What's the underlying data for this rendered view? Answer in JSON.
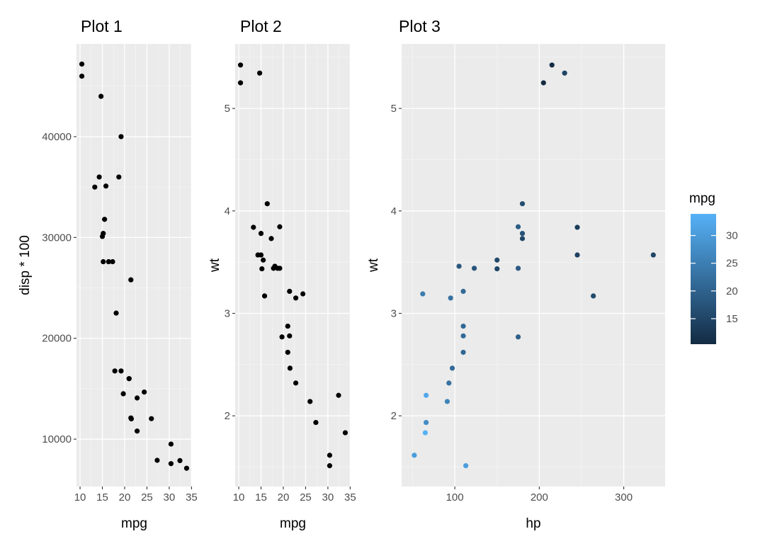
{
  "chart_data": [
    {
      "type": "scatter",
      "title": "Plot 1",
      "xlabel": "mpg",
      "ylabel": "disp * 100",
      "xlim": [
        9.2,
        35.1
      ],
      "ylim": [
        5300,
        49200
      ],
      "xticks": [
        10,
        15,
        20,
        25,
        30,
        35
      ],
      "yticks": [
        10000,
        20000,
        30000,
        40000
      ],
      "grid": true,
      "points": [
        {
          "x": 10.4,
          "y": 47200
        },
        {
          "x": 10.4,
          "y": 46000
        },
        {
          "x": 14.7,
          "y": 44000
        },
        {
          "x": 19.2,
          "y": 40000
        },
        {
          "x": 14.3,
          "y": 36000
        },
        {
          "x": 18.7,
          "y": 36000
        },
        {
          "x": 13.3,
          "y": 35000
        },
        {
          "x": 15.8,
          "y": 35100
        },
        {
          "x": 15.5,
          "y": 31800
        },
        {
          "x": 15.2,
          "y": 30400
        },
        {
          "x": 15.0,
          "y": 30100
        },
        {
          "x": 15.2,
          "y": 27600
        },
        {
          "x": 16.4,
          "y": 27600
        },
        {
          "x": 17.3,
          "y": 27600
        },
        {
          "x": 21.4,
          "y": 25800
        },
        {
          "x": 18.1,
          "y": 22500
        },
        {
          "x": 17.8,
          "y": 16760
        },
        {
          "x": 19.2,
          "y": 16760
        },
        {
          "x": 21.0,
          "y": 16000
        },
        {
          "x": 21.0,
          "y": 16000
        },
        {
          "x": 24.4,
          "y": 14670
        },
        {
          "x": 19.7,
          "y": 14500
        },
        {
          "x": 22.8,
          "y": 14080
        },
        {
          "x": 26.0,
          "y": 12030
        },
        {
          "x": 21.4,
          "y": 12100
        },
        {
          "x": 21.5,
          "y": 12010
        },
        {
          "x": 22.8,
          "y": 10800
        },
        {
          "x": 30.4,
          "y": 9510
        },
        {
          "x": 27.3,
          "y": 7900
        },
        {
          "x": 32.4,
          "y": 7870
        },
        {
          "x": 30.4,
          "y": 7570
        },
        {
          "x": 33.9,
          "y": 7110
        }
      ]
    },
    {
      "type": "scatter",
      "title": "Plot 2",
      "xlabel": "mpg",
      "ylabel": "wt",
      "xlim": [
        9.2,
        35.1
      ],
      "ylim": [
        1.31,
        5.63
      ],
      "xticks": [
        10,
        15,
        20,
        25,
        30,
        35
      ],
      "yticks": [
        2,
        3,
        4,
        5
      ],
      "grid": true,
      "points": [
        {
          "x": 10.4,
          "y": 5.424
        },
        {
          "x": 10.4,
          "y": 5.25
        },
        {
          "x": 14.7,
          "y": 5.345
        },
        {
          "x": 16.4,
          "y": 4.07
        },
        {
          "x": 13.3,
          "y": 3.84
        },
        {
          "x": 19.2,
          "y": 3.845
        },
        {
          "x": 15.0,
          "y": 3.78
        },
        {
          "x": 17.3,
          "y": 3.73
        },
        {
          "x": 14.3,
          "y": 3.57
        },
        {
          "x": 15.0,
          "y": 3.57
        },
        {
          "x": 15.5,
          "y": 3.52
        },
        {
          "x": 15.2,
          "y": 3.435
        },
        {
          "x": 18.1,
          "y": 3.46
        },
        {
          "x": 17.8,
          "y": 3.44
        },
        {
          "x": 18.7,
          "y": 3.44
        },
        {
          "x": 19.2,
          "y": 3.44
        },
        {
          "x": 15.8,
          "y": 3.17
        },
        {
          "x": 21.4,
          "y": 3.215
        },
        {
          "x": 24.4,
          "y": 3.19
        },
        {
          "x": 22.8,
          "y": 3.15
        },
        {
          "x": 21.0,
          "y": 2.875
        },
        {
          "x": 19.7,
          "y": 2.77
        },
        {
          "x": 21.4,
          "y": 2.78
        },
        {
          "x": 21.0,
          "y": 2.62
        },
        {
          "x": 21.5,
          "y": 2.465
        },
        {
          "x": 22.8,
          "y": 2.32
        },
        {
          "x": 26.0,
          "y": 2.14
        },
        {
          "x": 32.4,
          "y": 2.2
        },
        {
          "x": 27.3,
          "y": 1.935
        },
        {
          "x": 33.9,
          "y": 1.835
        },
        {
          "x": 30.4,
          "y": 1.615
        },
        {
          "x": 30.4,
          "y": 1.513
        }
      ]
    },
    {
      "type": "scatter",
      "title": "Plot 3",
      "xlabel": "hp",
      "ylabel": "wt",
      "xlim": [
        37,
        349
      ],
      "ylim": [
        1.31,
        5.63
      ],
      "xticks": [
        100,
        200,
        300
      ],
      "yticks": [
        2,
        3,
        4,
        5
      ],
      "grid": true,
      "color_by": "mpg",
      "legend": {
        "title": "mpg",
        "position": "right",
        "ticks": [
          15,
          20,
          25,
          30
        ],
        "range": [
          10.4,
          33.9
        ],
        "low_color": "#132B43",
        "high_color": "#56B1F7"
      },
      "points": [
        {
          "x": 215,
          "y": 5.424,
          "c": 10.4
        },
        {
          "x": 205,
          "y": 5.25,
          "c": 10.4
        },
        {
          "x": 230,
          "y": 5.345,
          "c": 14.7
        },
        {
          "x": 180,
          "y": 4.07,
          "c": 16.4
        },
        {
          "x": 245,
          "y": 3.84,
          "c": 13.3
        },
        {
          "x": 175,
          "y": 3.845,
          "c": 19.2
        },
        {
          "x": 180,
          "y": 3.78,
          "c": 17.3
        },
        {
          "x": 180,
          "y": 3.73,
          "c": 15.2
        },
        {
          "x": 245,
          "y": 3.57,
          "c": 14.3
        },
        {
          "x": 335,
          "y": 3.57,
          "c": 15.0
        },
        {
          "x": 150,
          "y": 3.52,
          "c": 15.5
        },
        {
          "x": 105,
          "y": 3.46,
          "c": 18.1
        },
        {
          "x": 123,
          "y": 3.44,
          "c": 17.8
        },
        {
          "x": 175,
          "y": 3.44,
          "c": 18.7
        },
        {
          "x": 150,
          "y": 3.435,
          "c": 15.2
        },
        {
          "x": 264,
          "y": 3.17,
          "c": 15.8
        },
        {
          "x": 62,
          "y": 3.19,
          "c": 24.4
        },
        {
          "x": 110,
          "y": 3.215,
          "c": 21.4
        },
        {
          "x": 95,
          "y": 3.15,
          "c": 22.8
        },
        {
          "x": 110,
          "y": 2.875,
          "c": 21.0
        },
        {
          "x": 110,
          "y": 2.78,
          "c": 21.4
        },
        {
          "x": 175,
          "y": 2.77,
          "c": 19.7
        },
        {
          "x": 110,
          "y": 2.62,
          "c": 21.0
        },
        {
          "x": 97,
          "y": 2.465,
          "c": 21.5
        },
        {
          "x": 93,
          "y": 2.32,
          "c": 22.8
        },
        {
          "x": 66,
          "y": 2.2,
          "c": 32.4
        },
        {
          "x": 91,
          "y": 2.14,
          "c": 26.0
        },
        {
          "x": 66,
          "y": 1.935,
          "c": 27.3
        },
        {
          "x": 65,
          "y": 1.835,
          "c": 33.9
        },
        {
          "x": 52,
          "y": 1.615,
          "c": 30.4
        },
        {
          "x": 113,
          "y": 1.513,
          "c": 30.4
        }
      ]
    }
  ]
}
